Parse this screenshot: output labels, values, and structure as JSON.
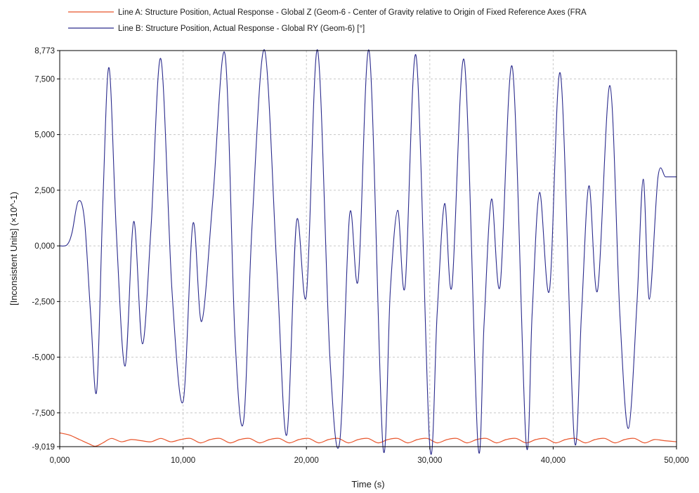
{
  "chart_data": {
    "type": "line",
    "xlabel": "Time (s)",
    "ylabel": "[Inconsistent Units] (×10^-1)",
    "xlim": [
      0,
      50
    ],
    "ylim": [
      -9.019,
      8.773
    ],
    "grid": true,
    "legend_placement": "top",
    "x_tick_labels": [
      "0,000",
      "10,000",
      "20,000",
      "30,000",
      "40,000",
      "50,000"
    ],
    "x_ticks": [
      0,
      10,
      20,
      30,
      40,
      50
    ],
    "y_tick_labels": [
      "8,773",
      "7,500",
      "5,000",
      "2,500",
      "0,000",
      "-2,500",
      "-5,000",
      "-7,500",
      "-9,019"
    ],
    "y_ticks": [
      8.773,
      7.5,
      5.0,
      2.5,
      0.0,
      -2.5,
      -5.0,
      -7.5,
      -9.019
    ],
    "series": [
      {
        "name": "Line A: Structure Position, Actual Response - Global Z (Geom-6 - Center of Gravity relative to Origin of Fixed Reference Axes (FRA",
        "color": "#e8542a",
        "x": [
          0,
          0.8,
          1.6,
          2.4,
          2.9,
          3.5,
          4.2,
          5.0,
          5.8,
          6.6,
          7.4,
          8.2,
          9.0,
          9.8,
          10.6,
          11.4,
          12.2,
          13.0,
          13.8,
          14.6,
          15.4,
          16.2,
          17.0,
          17.8,
          18.6,
          19.4,
          20.2,
          21.0,
          21.8,
          22.6,
          23.4,
          24.2,
          25.0,
          25.8,
          26.6,
          27.4,
          28.2,
          29.0,
          29.8,
          30.6,
          31.4,
          32.2,
          33.0,
          33.8,
          34.6,
          35.4,
          36.2,
          37.0,
          37.8,
          38.6,
          39.4,
          40.2,
          41.0,
          41.8,
          42.6,
          43.4,
          44.2,
          45.0,
          45.8,
          46.6,
          47.4,
          48.2,
          49.0,
          50.0
        ],
        "y": [
          -8.4,
          -8.5,
          -8.7,
          -8.9,
          -9.0,
          -8.85,
          -8.65,
          -8.8,
          -8.7,
          -8.75,
          -8.8,
          -8.65,
          -8.8,
          -8.7,
          -8.65,
          -8.85,
          -8.7,
          -8.65,
          -8.85,
          -8.7,
          -8.65,
          -8.85,
          -8.7,
          -8.65,
          -8.85,
          -8.7,
          -8.65,
          -8.85,
          -8.7,
          -8.65,
          -8.85,
          -8.7,
          -8.65,
          -8.85,
          -8.7,
          -8.65,
          -8.85,
          -8.7,
          -8.65,
          -8.85,
          -8.7,
          -8.65,
          -8.85,
          -8.7,
          -8.65,
          -8.85,
          -8.7,
          -8.65,
          -8.85,
          -8.7,
          -8.65,
          -8.85,
          -8.7,
          -8.65,
          -8.85,
          -8.7,
          -8.65,
          -8.85,
          -8.7,
          -8.65,
          -8.85,
          -8.7,
          -8.75,
          -8.8
        ]
      },
      {
        "name": "Line B: Structure Position, Actual Response - Global RY (Geom-6) [°]",
        "color": "#2a2a8c",
        "x": [
          0.0,
          0.6,
          1.0,
          1.5,
          2.0,
          2.5,
          3.0,
          3.5,
          4.0,
          4.6,
          5.3,
          6.0,
          6.7,
          7.4,
          8.2,
          9.1,
          10.0,
          10.8,
          11.5,
          12.4,
          13.4,
          14.2,
          14.9,
          15.6,
          16.6,
          17.6,
          18.4,
          19.2,
          20.0,
          20.9,
          21.9,
          22.7,
          23.5,
          24.2,
          25.1,
          26.2,
          26.8,
          27.4,
          28.0,
          28.9,
          30.0,
          30.6,
          31.2,
          31.8,
          32.8,
          33.9,
          34.4,
          35.0,
          35.7,
          36.7,
          37.8,
          38.3,
          38.9,
          39.7,
          40.6,
          41.7,
          42.3,
          42.9,
          43.6,
          44.6,
          45.4,
          46.1,
          46.8,
          47.3,
          47.8,
          48.5,
          49.1,
          49.6,
          50.0
        ],
        "y": [
          0.0,
          0.05,
          0.6,
          2.0,
          1.2,
          -3.0,
          -6.5,
          2.0,
          8.0,
          0.5,
          -5.4,
          1.1,
          -4.4,
          0.8,
          8.4,
          -2.0,
          -7.0,
          1.0,
          -3.4,
          2.0,
          8.6,
          -4.0,
          -7.9,
          1.0,
          8.8,
          -1.0,
          -8.5,
          1.1,
          -2.2,
          8.8,
          -5.0,
          -8.8,
          1.4,
          -1.5,
          8.7,
          -9.0,
          -2.0,
          1.6,
          -1.8,
          8.5,
          -9.0,
          -3.0,
          1.9,
          -1.8,
          8.3,
          -8.9,
          -3.5,
          2.1,
          -1.8,
          8.0,
          -8.8,
          -3.0,
          2.4,
          -2.0,
          7.7,
          -8.6,
          -3.0,
          2.7,
          -2.0,
          7.2,
          -3.0,
          -8.2,
          -2.5,
          3.0,
          -2.4,
          3.1,
          3.1,
          3.1,
          3.1
        ]
      }
    ]
  }
}
